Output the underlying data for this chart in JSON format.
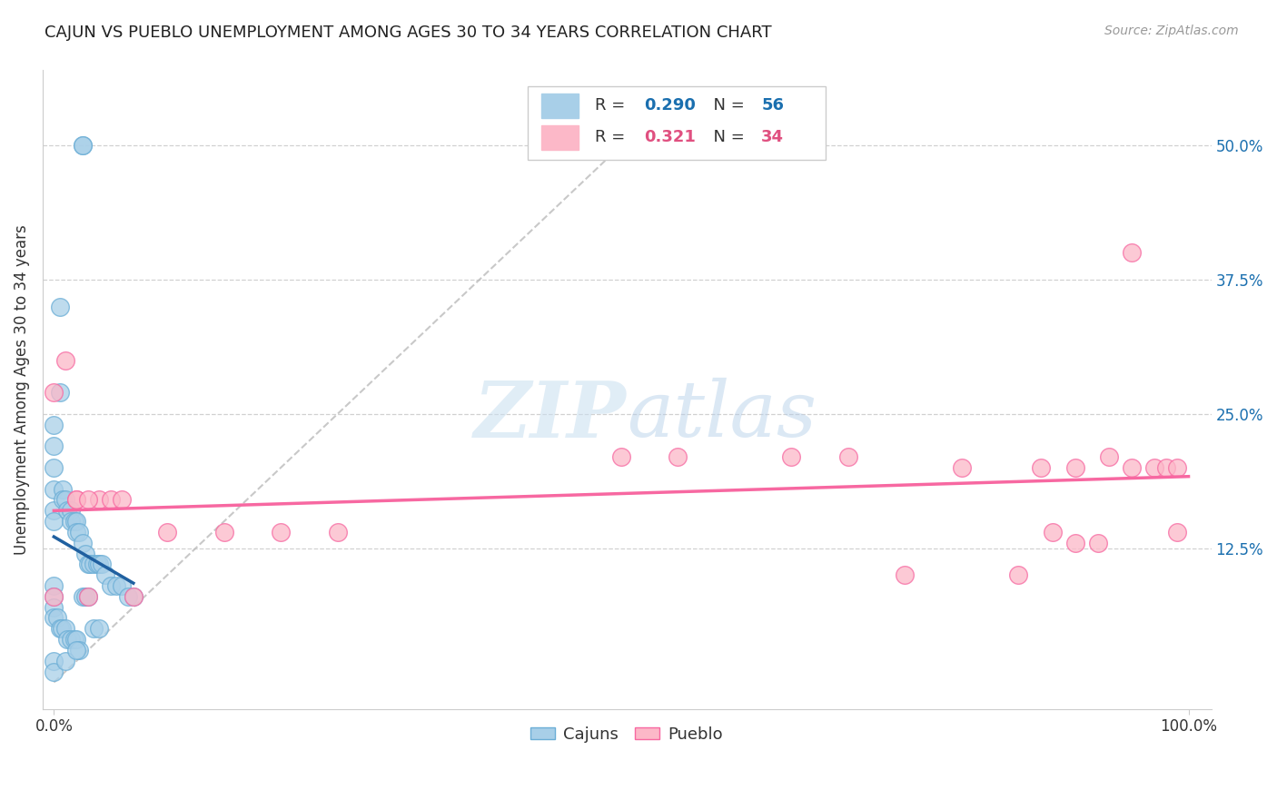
{
  "title": "CAJUN VS PUEBLO UNEMPLOYMENT AMONG AGES 30 TO 34 YEARS CORRELATION CHART",
  "source": "Source: ZipAtlas.com",
  "ylabel": "Unemployment Among Ages 30 to 34 years",
  "cajun_color": "#a8cfe8",
  "cajun_edge_color": "#6baed6",
  "pueblo_color": "#fcb8c8",
  "pueblo_edge_color": "#f768a1",
  "cajun_R": "0.290",
  "cajun_N": "56",
  "pueblo_R": "0.321",
  "pueblo_N": "34",
  "trendline_cajun_color": "#2060a0",
  "trendline_pueblo_color": "#f768a1",
  "legend_blue": "#1a6faf",
  "legend_pink": "#e05080",
  "cajun_x": [
    0.025,
    0.025,
    0.005,
    0.005,
    0.0,
    0.0,
    0.0,
    0.0,
    0.0,
    0.0,
    0.008,
    0.008,
    0.01,
    0.012,
    0.015,
    0.015,
    0.018,
    0.02,
    0.02,
    0.022,
    0.025,
    0.028,
    0.03,
    0.032,
    0.035,
    0.038,
    0.04,
    0.042,
    0.045,
    0.05,
    0.055,
    0.06,
    0.065,
    0.07,
    0.0,
    0.0,
    0.0,
    0.0,
    0.003,
    0.005,
    0.007,
    0.01,
    0.012,
    0.015,
    0.018,
    0.02,
    0.022,
    0.025,
    0.028,
    0.03,
    0.035,
    0.04,
    0.0,
    0.0,
    0.01,
    0.02
  ],
  "cajun_y": [
    0.5,
    0.5,
    0.35,
    0.27,
    0.24,
    0.22,
    0.2,
    0.18,
    0.16,
    0.15,
    0.18,
    0.17,
    0.17,
    0.16,
    0.16,
    0.15,
    0.15,
    0.15,
    0.14,
    0.14,
    0.13,
    0.12,
    0.11,
    0.11,
    0.11,
    0.11,
    0.11,
    0.11,
    0.1,
    0.09,
    0.09,
    0.09,
    0.08,
    0.08,
    0.09,
    0.08,
    0.07,
    0.06,
    0.06,
    0.05,
    0.05,
    0.05,
    0.04,
    0.04,
    0.04,
    0.04,
    0.03,
    0.08,
    0.08,
    0.08,
    0.05,
    0.05,
    0.02,
    0.01,
    0.02,
    0.03
  ],
  "pueblo_x": [
    0.0,
    0.01,
    0.02,
    0.03,
    0.04,
    0.05,
    0.06,
    0.07,
    0.5,
    0.55,
    0.65,
    0.7,
    0.75,
    0.8,
    0.85,
    0.87,
    0.88,
    0.9,
    0.9,
    0.92,
    0.93,
    0.95,
    0.95,
    0.97,
    0.98,
    0.99,
    0.99,
    0.1,
    0.15,
    0.2,
    0.25,
    0.0,
    0.02,
    0.03
  ],
  "pueblo_y": [
    0.27,
    0.3,
    0.17,
    0.08,
    0.17,
    0.17,
    0.17,
    0.08,
    0.21,
    0.21,
    0.21,
    0.21,
    0.1,
    0.2,
    0.1,
    0.2,
    0.14,
    0.13,
    0.2,
    0.13,
    0.21,
    0.2,
    0.4,
    0.2,
    0.2,
    0.14,
    0.2,
    0.14,
    0.14,
    0.14,
    0.14,
    0.08,
    0.17,
    0.17
  ],
  "xlim": [
    -0.01,
    1.02
  ],
  "ylim": [
    -0.025,
    0.57
  ],
  "xticks": [
    0.0,
    1.0
  ],
  "xtick_labels": [
    "0.0%",
    "100.0%"
  ],
  "yticks": [
    0.125,
    0.25,
    0.375,
    0.5
  ],
  "ytick_labels": [
    "12.5%",
    "25.0%",
    "37.5%",
    "50.0%"
  ]
}
